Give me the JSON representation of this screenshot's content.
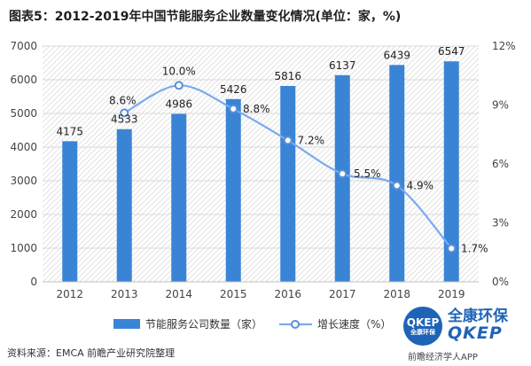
{
  "title": "图表5：2012-2019年中国节能服务企业数量变化情况(单位：家，%)",
  "source": "资料来源：EMCA 前瞻产业研究院整理",
  "footer_brand": "前瞻经济学人APP",
  "logo": {
    "badge_top": "QKEP",
    "badge_bottom": "全康环保",
    "name_cn": "全康环保",
    "name_en": "QKEP"
  },
  "colors": {
    "bar": "#3a84d6",
    "line": "#7aaaf0",
    "marker_stroke": "#5a8fd8",
    "grid": "#d9d9d9",
    "axis_text": "#444444"
  },
  "chart_data": {
    "type": "bar",
    "categories": [
      "2012",
      "2013",
      "2014",
      "2015",
      "2016",
      "2017",
      "2018",
      "2019"
    ],
    "series": [
      {
        "name": "节能服务公司数量（家）",
        "type": "bar",
        "axis": "left",
        "values": [
          4175,
          4533,
          4986,
          5426,
          5816,
          6137,
          6439,
          6547
        ],
        "labels": [
          "4175",
          "4533",
          "4986",
          "5426",
          "5816",
          "6137",
          "6439",
          "6547"
        ]
      },
      {
        "name": "增长速度（%）",
        "type": "line",
        "axis": "right",
        "values": [
          null,
          8.6,
          10.0,
          8.8,
          7.2,
          5.5,
          4.9,
          1.7
        ],
        "labels": [
          null,
          "8.6%",
          "10.0%",
          "8.8%",
          "7.2%",
          "5.5%",
          "4.9%",
          "1.7%"
        ]
      }
    ],
    "yleft": {
      "min": 0,
      "max": 7000,
      "ticks": [
        "0",
        "1000",
        "2000",
        "3000",
        "4000",
        "5000",
        "6000",
        "7000"
      ]
    },
    "yright": {
      "min": 0,
      "max": 12,
      "ticks": [
        "0%",
        "3%",
        "6%",
        "9%",
        "12%"
      ]
    },
    "grid": true,
    "legend_position": "bottom"
  }
}
